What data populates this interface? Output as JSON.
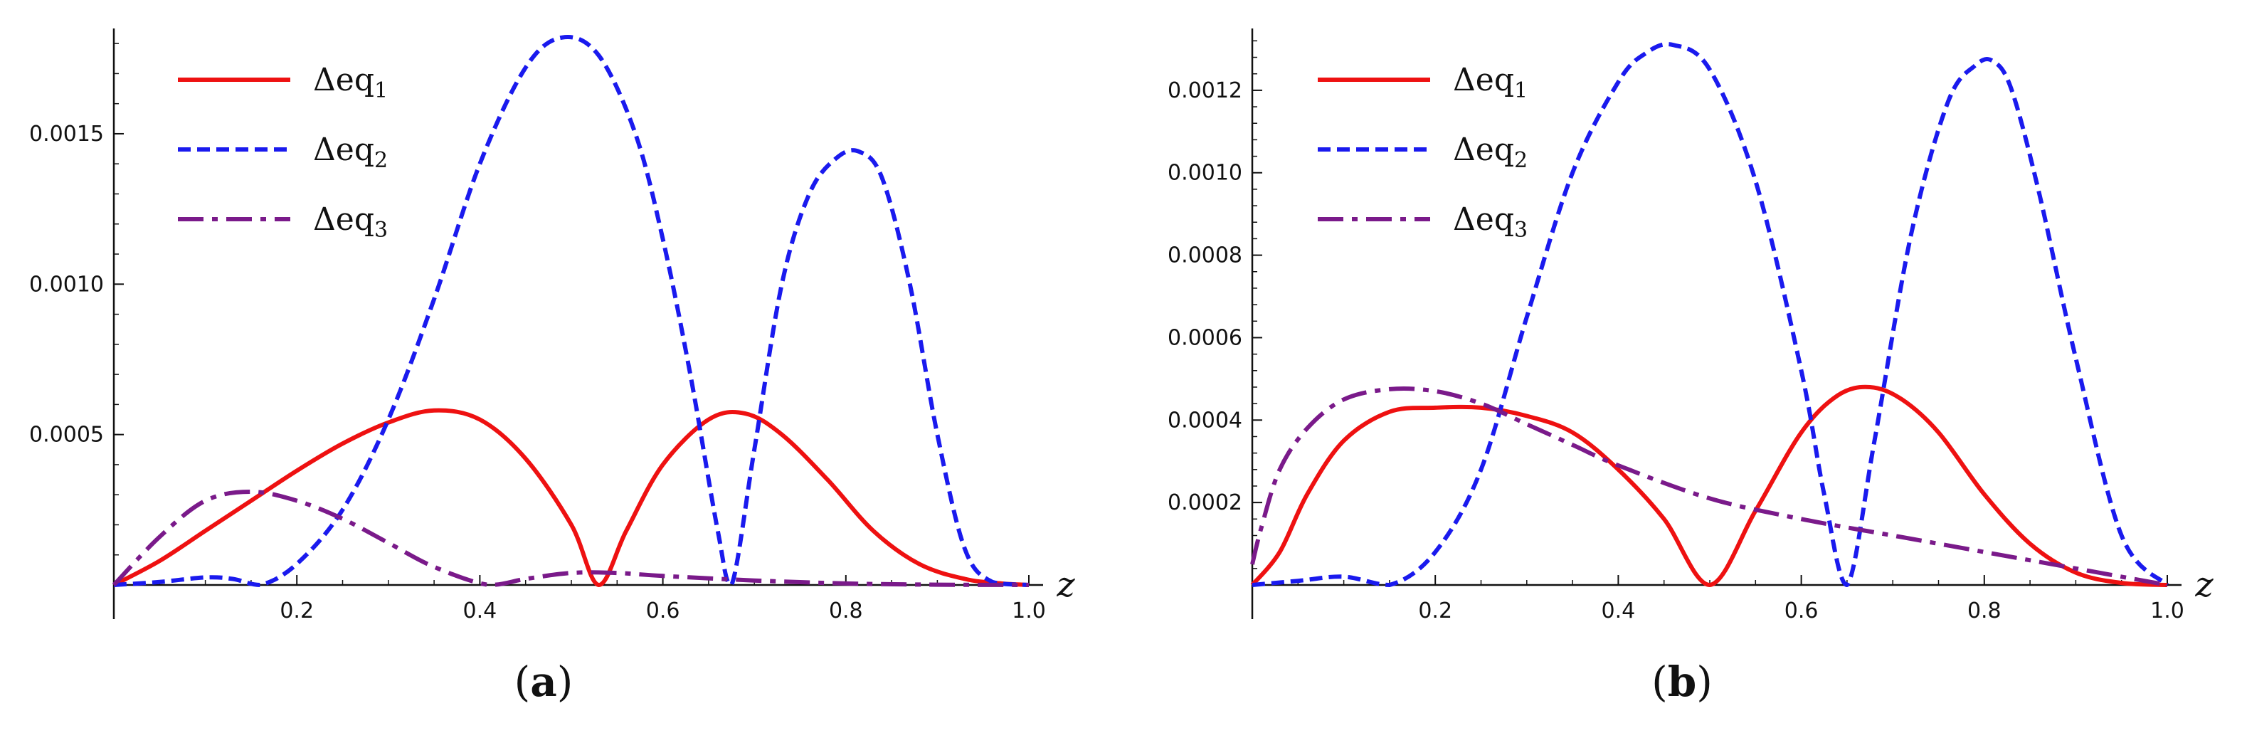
{
  "chart_data": [
    {
      "type": "line",
      "panel_label": "a",
      "xlabel": "z",
      "ylabel": "",
      "xlim": [
        0,
        1.0
      ],
      "ylim": [
        0,
        0.00185
      ],
      "xticks": [
        0.2,
        0.4,
        0.6,
        0.8,
        1.0
      ],
      "xtick_labels": [
        "0.2",
        "0.4",
        "0.6",
        "0.8",
        "1.0"
      ],
      "yticks": [
        0.0005,
        0.001,
        0.0015
      ],
      "ytick_labels": [
        "0.0005",
        "0.0010",
        "0.0015"
      ],
      "legend": {
        "placement": "top-left"
      },
      "series": [
        {
          "name_base": "Δeq",
          "name_sub": "1",
          "color": "#ee1111",
          "dash": "solid",
          "x": [
            0,
            0.05,
            0.1,
            0.15,
            0.2,
            0.25,
            0.3,
            0.35,
            0.4,
            0.45,
            0.5,
            0.53,
            0.56,
            0.6,
            0.65,
            0.69,
            0.73,
            0.78,
            0.83,
            0.88,
            0.93,
            0.97,
            1.0
          ],
          "y": [
            0,
            8e-05,
            0.00018,
            0.00028,
            0.00038,
            0.00047,
            0.00054,
            0.00058,
            0.00055,
            0.00042,
            0.0002,
            0.0,
            0.00018,
            0.0004,
            0.00055,
            0.00057,
            0.0005,
            0.00035,
            0.00018,
            7e-05,
            2e-05,
            5e-06,
            0
          ]
        },
        {
          "name_base": "Δeq",
          "name_sub": "2",
          "color": "#1a1aee",
          "dash": "dashed",
          "x": [
            0,
            0.05,
            0.1,
            0.13,
            0.16,
            0.2,
            0.25,
            0.3,
            0.35,
            0.4,
            0.45,
            0.49,
            0.53,
            0.57,
            0.6,
            0.63,
            0.66,
            0.675,
            0.7,
            0.73,
            0.76,
            0.79,
            0.815,
            0.84,
            0.87,
            0.9,
            0.93,
            0.96,
            1.0
          ],
          "y": [
            0,
            1e-05,
            2.5e-05,
            2e-05,
            0.0,
            7e-05,
            0.00025,
            0.00055,
            0.00095,
            0.0014,
            0.00172,
            0.00182,
            0.00176,
            0.0015,
            0.00115,
            0.0007,
            0.00018,
            0.0,
            0.00045,
            0.001,
            0.0013,
            0.00142,
            0.00144,
            0.00135,
            0.001,
            0.0005,
            0.00012,
            1e-05,
            0
          ]
        },
        {
          "name_base": "Δeq",
          "name_sub": "3",
          "color": "#7a1a8a",
          "dash": "dashdot",
          "x": [
            0,
            0.05,
            0.1,
            0.15,
            0.2,
            0.25,
            0.3,
            0.35,
            0.41,
            0.45,
            0.5,
            0.55,
            0.6,
            0.7,
            0.8,
            0.9,
            1.0
          ],
          "y": [
            0,
            0.00016,
            0.00028,
            0.00031,
            0.00028,
            0.00022,
            0.00014,
            6e-05,
            0.0,
            2e-05,
            4e-05,
            4e-05,
            3e-05,
            1.5e-05,
            5e-06,
            1e-06,
            0
          ]
        }
      ]
    },
    {
      "type": "line",
      "panel_label": "b",
      "xlabel": "z",
      "ylabel": "",
      "xlim": [
        0,
        1.0
      ],
      "ylim": [
        0,
        0.00135
      ],
      "xticks": [
        0.2,
        0.4,
        0.6,
        0.8,
        1.0
      ],
      "xtick_labels": [
        "0.2",
        "0.4",
        "0.6",
        "0.8",
        "1.0"
      ],
      "yticks": [
        0.0002,
        0.0004,
        0.0006,
        0.0008,
        0.001,
        0.0012
      ],
      "ytick_labels": [
        "0.0002",
        "0.0004",
        "0.0006",
        "0.0008",
        "0.0010",
        "0.0012"
      ],
      "legend": {
        "placement": "top-left"
      },
      "series": [
        {
          "name_base": "Δeq",
          "name_sub": "1",
          "color": "#ee1111",
          "dash": "solid",
          "x": [
            0,
            0.03,
            0.06,
            0.1,
            0.15,
            0.2,
            0.25,
            0.3,
            0.35,
            0.4,
            0.45,
            0.5,
            0.55,
            0.6,
            0.64,
            0.675,
            0.71,
            0.75,
            0.8,
            0.85,
            0.9,
            0.95,
            1.0
          ],
          "y": [
            0,
            8e-05,
            0.00022,
            0.00035,
            0.00042,
            0.00043,
            0.00043,
            0.00041,
            0.00037,
            0.00028,
            0.00016,
            0.0,
            0.00018,
            0.00037,
            0.00046,
            0.00048,
            0.00045,
            0.00037,
            0.00022,
            0.0001,
            3e-05,
            5e-06,
            0
          ]
        },
        {
          "name_base": "Δeq",
          "name_sub": "2",
          "color": "#1a1aee",
          "dash": "dashed",
          "x": [
            0,
            0.05,
            0.1,
            0.15,
            0.2,
            0.25,
            0.3,
            0.35,
            0.4,
            0.43,
            0.46,
            0.5,
            0.55,
            0.6,
            0.625,
            0.65,
            0.68,
            0.72,
            0.76,
            0.79,
            0.81,
            0.83,
            0.86,
            0.9,
            0.95,
            1.0
          ],
          "y": [
            0,
            1e-05,
            2e-05,
            0.0,
            8e-05,
            0.00028,
            0.00065,
            0.001,
            0.00122,
            0.00129,
            0.00131,
            0.00125,
            0.00098,
            0.00052,
            0.00022,
            0.0,
            0.00035,
            0.00085,
            0.00117,
            0.00126,
            0.00127,
            0.0012,
            0.00095,
            0.00055,
            0.00012,
            0
          ]
        },
        {
          "name_base": "Δeq",
          "name_sub": "3",
          "color": "#7a1a8a",
          "dash": "dashdot",
          "x": [
            0,
            0.01,
            0.03,
            0.06,
            0.1,
            0.15,
            0.2,
            0.25,
            0.3,
            0.35,
            0.4,
            0.5,
            0.6,
            0.7,
            0.8,
            0.9,
            1.0
          ],
          "y": [
            5e-05,
            0.00014,
            0.00028,
            0.00038,
            0.00045,
            0.000475,
            0.00047,
            0.00044,
            0.00039,
            0.00034,
            0.00029,
            0.00021,
            0.00016,
            0.00012,
            8e-05,
            4e-05,
            0
          ]
        }
      ]
    }
  ]
}
